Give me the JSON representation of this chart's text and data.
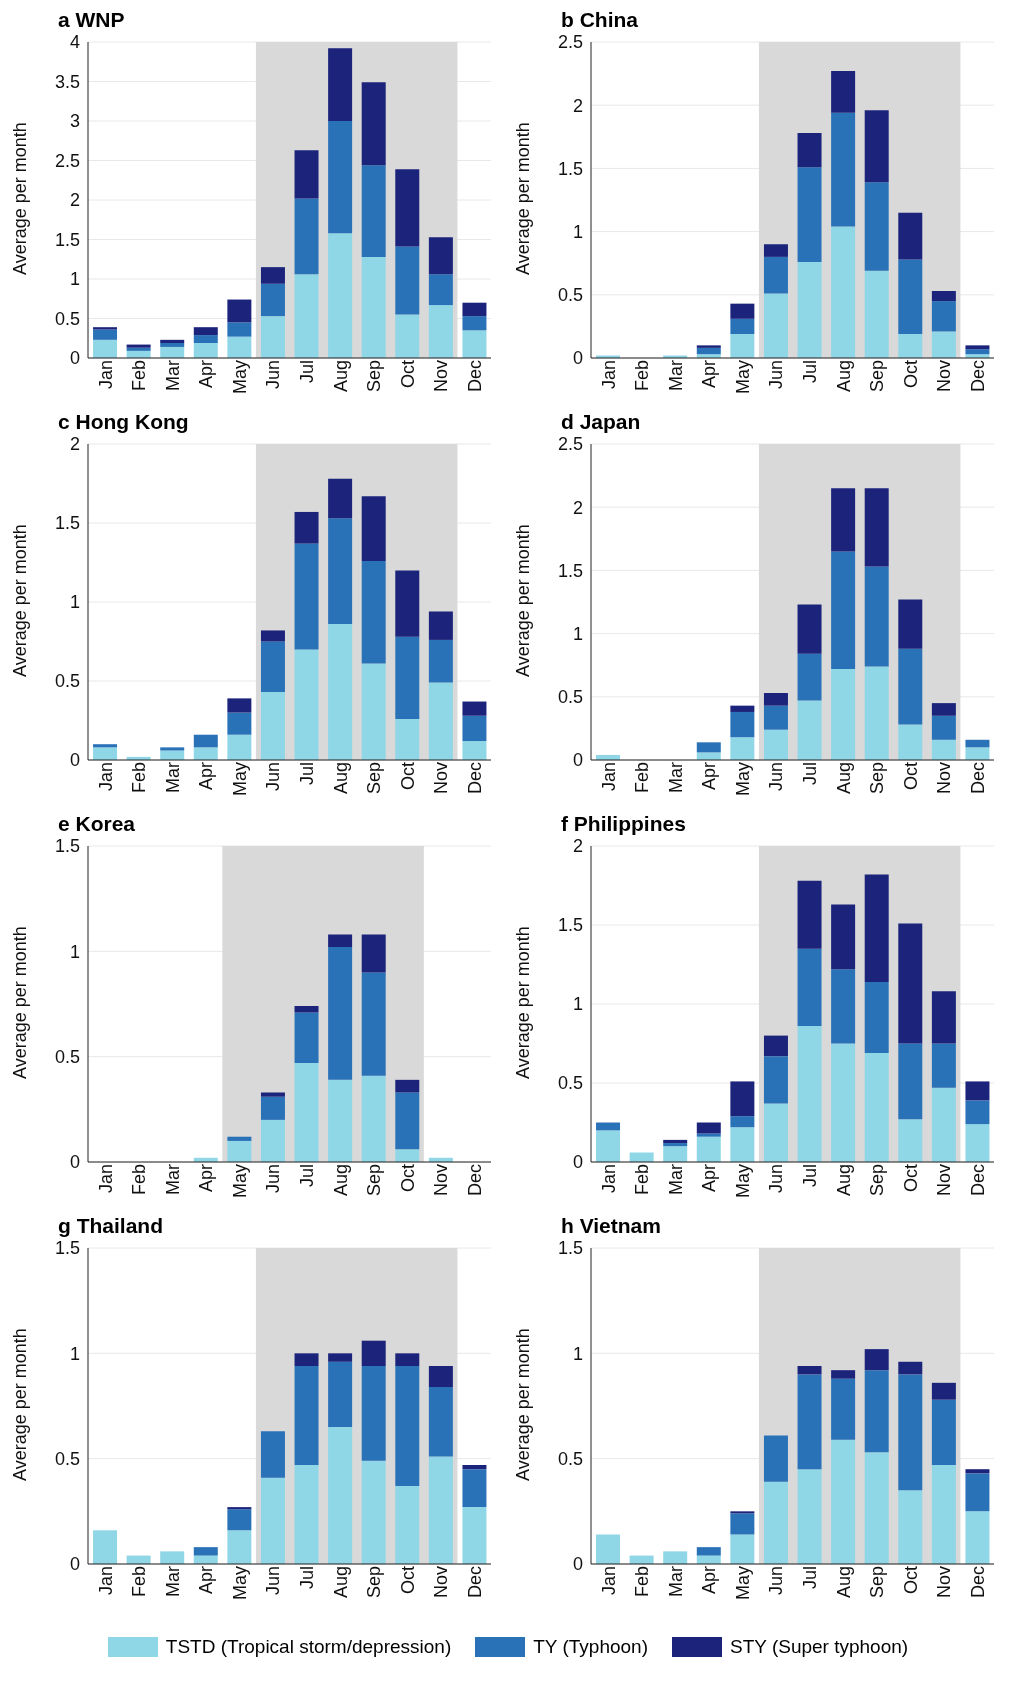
{
  "chart_data": [
    {
      "type": "bar",
      "title": "a WNP",
      "ylabel": "Average per month",
      "categories": [
        "Jan",
        "Feb",
        "Mar",
        "Apr",
        "May",
        "Jun",
        "Jul",
        "Aug",
        "Sep",
        "Oct",
        "Nov",
        "Dec"
      ],
      "stacked": true,
      "grid": "y",
      "legend": "bottom",
      "ylim": [
        0,
        4
      ],
      "yticks": [
        0,
        0.5,
        1,
        1.5,
        2,
        2.5,
        3,
        3.5,
        4
      ],
      "bands": [
        {
          "axis": "x",
          "from": "Jun",
          "to": "Nov",
          "color": "#d9d9d9"
        }
      ],
      "series": [
        {
          "name": "TSTD (Tropical storm/depression)",
          "color": "#8fd6e6",
          "values": [
            0.23,
            0.09,
            0.14,
            0.19,
            0.27,
            0.53,
            1.06,
            1.58,
            1.28,
            0.55,
            0.67,
            0.35
          ]
        },
        {
          "name": "TY (Typhoon)",
          "color": "#2a72b8",
          "values": [
            0.13,
            0.04,
            0.05,
            0.1,
            0.18,
            0.41,
            0.96,
            1.42,
            1.16,
            0.86,
            0.39,
            0.18
          ]
        },
        {
          "name": "STY (Super typhoon)",
          "color": "#1b237a",
          "values": [
            0.03,
            0.04,
            0.04,
            0.1,
            0.29,
            0.21,
            0.61,
            0.92,
            1.05,
            0.98,
            0.47,
            0.17
          ]
        }
      ]
    },
    {
      "type": "bar",
      "title": "b China",
      "ylabel": "Average per month",
      "categories": [
        "Jan",
        "Feb",
        "Mar",
        "Apr",
        "May",
        "Jun",
        "Jul",
        "Aug",
        "Sep",
        "Oct",
        "Nov",
        "Dec"
      ],
      "stacked": true,
      "grid": "y",
      "ylim": [
        0,
        2.5
      ],
      "yticks": [
        0,
        0.5,
        1,
        1.5,
        2,
        2.5
      ],
      "bands": [
        {
          "axis": "x",
          "from": "Jun",
          "to": "Nov",
          "color": "#d9d9d9"
        }
      ],
      "series": [
        {
          "color": "#8fd6e6",
          "values": [
            0.02,
            0,
            0.02,
            0.03,
            0.19,
            0.51,
            0.76,
            1.04,
            0.69,
            0.19,
            0.21,
            0.03
          ]
        },
        {
          "color": "#2a72b8",
          "values": [
            0,
            0,
            0,
            0.05,
            0.12,
            0.29,
            0.75,
            0.9,
            0.7,
            0.59,
            0.24,
            0.04
          ]
        },
        {
          "color": "#1b237a",
          "values": [
            0,
            0,
            0,
            0.02,
            0.12,
            0.1,
            0.27,
            0.33,
            0.57,
            0.37,
            0.08,
            0.03
          ]
        }
      ]
    },
    {
      "type": "bar",
      "title": "c Hong Kong",
      "ylabel": "Average per month",
      "categories": [
        "Jan",
        "Feb",
        "Mar",
        "Apr",
        "May",
        "Jun",
        "Jul",
        "Aug",
        "Sep",
        "Oct",
        "Nov",
        "Dec"
      ],
      "stacked": true,
      "grid": "y",
      "ylim": [
        0,
        2
      ],
      "yticks": [
        0,
        0.5,
        1,
        1.5,
        2
      ],
      "bands": [
        {
          "axis": "x",
          "from": "Jun",
          "to": "Nov",
          "color": "#d9d9d9"
        }
      ],
      "series": [
        {
          "color": "#8fd6e6",
          "values": [
            0.08,
            0.02,
            0.06,
            0.08,
            0.16,
            0.43,
            0.7,
            0.86,
            0.61,
            0.26,
            0.49,
            0.12
          ]
        },
        {
          "color": "#2a72b8",
          "values": [
            0.02,
            0,
            0.02,
            0.08,
            0.14,
            0.32,
            0.67,
            0.67,
            0.65,
            0.52,
            0.27,
            0.16
          ]
        },
        {
          "color": "#1b237a",
          "values": [
            0,
            0,
            0,
            0,
            0.09,
            0.07,
            0.2,
            0.25,
            0.41,
            0.42,
            0.18,
            0.09
          ]
        }
      ]
    },
    {
      "type": "bar",
      "title": "d Japan",
      "ylabel": "Average per month",
      "categories": [
        "Jan",
        "Feb",
        "Mar",
        "Apr",
        "May",
        "Jun",
        "Jul",
        "Aug",
        "Sep",
        "Oct",
        "Nov",
        "Dec"
      ],
      "stacked": true,
      "grid": "y",
      "ylim": [
        0,
        2.5
      ],
      "yticks": [
        0,
        0.5,
        1,
        1.5,
        2,
        2.5
      ],
      "bands": [
        {
          "axis": "x",
          "from": "Jun",
          "to": "Nov",
          "color": "#d9d9d9"
        }
      ],
      "series": [
        {
          "color": "#8fd6e6",
          "values": [
            0.04,
            0,
            0,
            0.06,
            0.18,
            0.24,
            0.47,
            0.72,
            0.74,
            0.28,
            0.16,
            0.1
          ]
        },
        {
          "color": "#2a72b8",
          "values": [
            0,
            0,
            0,
            0.08,
            0.2,
            0.19,
            0.37,
            0.93,
            0.79,
            0.6,
            0.19,
            0.06
          ]
        },
        {
          "color": "#1b237a",
          "values": [
            0,
            0,
            0,
            0,
            0.05,
            0.1,
            0.39,
            0.5,
            0.62,
            0.39,
            0.1,
            0
          ]
        }
      ]
    },
    {
      "type": "bar",
      "title": "e Korea",
      "ylabel": "Average per month",
      "categories": [
        "Jan",
        "Feb",
        "Mar",
        "Apr",
        "May",
        "Jun",
        "Jul",
        "Aug",
        "Sep",
        "Oct",
        "Nov",
        "Dec"
      ],
      "stacked": true,
      "grid": "y",
      "ylim": [
        0,
        1.5
      ],
      "yticks": [
        0,
        0.5,
        1,
        1.5
      ],
      "bands": [
        {
          "axis": "x",
          "from": "May",
          "to": "Oct",
          "color": "#d9d9d9"
        }
      ],
      "series": [
        {
          "color": "#8fd6e6",
          "values": [
            0,
            0,
            0,
            0.02,
            0.1,
            0.2,
            0.47,
            0.39,
            0.41,
            0.06,
            0.02,
            0
          ]
        },
        {
          "color": "#2a72b8",
          "values": [
            0,
            0,
            0,
            0,
            0.02,
            0.11,
            0.24,
            0.63,
            0.49,
            0.27,
            0,
            0
          ]
        },
        {
          "color": "#1b237a",
          "values": [
            0,
            0,
            0,
            0,
            0,
            0.02,
            0.03,
            0.06,
            0.18,
            0.06,
            0,
            0
          ]
        }
      ]
    },
    {
      "type": "bar",
      "title": "f Philippines",
      "ylabel": "Average per month",
      "categories": [
        "Jan",
        "Feb",
        "Mar",
        "Apr",
        "May",
        "Jun",
        "Jul",
        "Aug",
        "Sep",
        "Oct",
        "Nov",
        "Dec"
      ],
      "stacked": true,
      "grid": "y",
      "ylim": [
        0,
        2
      ],
      "yticks": [
        0,
        0.5,
        1,
        1.5,
        2
      ],
      "bands": [
        {
          "axis": "x",
          "from": "Jun",
          "to": "Nov",
          "color": "#d9d9d9"
        }
      ],
      "series": [
        {
          "color": "#8fd6e6",
          "values": [
            0.2,
            0.06,
            0.1,
            0.16,
            0.22,
            0.37,
            0.86,
            0.75,
            0.69,
            0.27,
            0.47,
            0.24
          ]
        },
        {
          "color": "#2a72b8",
          "values": [
            0.05,
            0,
            0.02,
            0.02,
            0.07,
            0.3,
            0.49,
            0.47,
            0.45,
            0.48,
            0.28,
            0.15
          ]
        },
        {
          "color": "#1b237a",
          "values": [
            0,
            0,
            0.02,
            0.07,
            0.22,
            0.13,
            0.43,
            0.41,
            0.68,
            0.76,
            0.33,
            0.12
          ]
        }
      ]
    },
    {
      "type": "bar",
      "title": "g Thailand",
      "ylabel": "Average per month",
      "categories": [
        "Jan",
        "Feb",
        "Mar",
        "Apr",
        "May",
        "Jun",
        "Jul",
        "Aug",
        "Sep",
        "Oct",
        "Nov",
        "Dec"
      ],
      "stacked": true,
      "grid": "y",
      "ylim": [
        0,
        1.5
      ],
      "yticks": [
        0,
        0.5,
        1,
        1.5
      ],
      "bands": [
        {
          "axis": "x",
          "from": "Jun",
          "to": "Nov",
          "color": "#d9d9d9"
        }
      ],
      "series": [
        {
          "color": "#8fd6e6",
          "values": [
            0.16,
            0.04,
            0.06,
            0.04,
            0.16,
            0.41,
            0.47,
            0.65,
            0.49,
            0.37,
            0.51,
            0.27
          ]
        },
        {
          "color": "#2a72b8",
          "values": [
            0,
            0,
            0,
            0.04,
            0.1,
            0.22,
            0.47,
            0.31,
            0.45,
            0.57,
            0.33,
            0.18
          ]
        },
        {
          "color": "#1b237a",
          "values": [
            0,
            0,
            0,
            0,
            0.01,
            0,
            0.06,
            0.04,
            0.12,
            0.06,
            0.1,
            0.02
          ]
        }
      ]
    },
    {
      "type": "bar",
      "title": "h Vietnam",
      "ylabel": "Average per month",
      "categories": [
        "Jan",
        "Feb",
        "Mar",
        "Apr",
        "May",
        "Jun",
        "Jul",
        "Aug",
        "Sep",
        "Oct",
        "Nov",
        "Dec"
      ],
      "stacked": true,
      "grid": "y",
      "ylim": [
        0,
        1.5
      ],
      "yticks": [
        0,
        0.5,
        1,
        1.5
      ],
      "bands": [
        {
          "axis": "x",
          "from": "Jun",
          "to": "Nov",
          "color": "#d9d9d9"
        }
      ],
      "series": [
        {
          "color": "#8fd6e6",
          "values": [
            0.14,
            0.04,
            0.06,
            0.04,
            0.14,
            0.39,
            0.45,
            0.59,
            0.53,
            0.35,
            0.47,
            0.25
          ]
        },
        {
          "color": "#2a72b8",
          "values": [
            0,
            0,
            0,
            0.04,
            0.1,
            0.22,
            0.45,
            0.29,
            0.39,
            0.55,
            0.31,
            0.18
          ]
        },
        {
          "color": "#1b237a",
          "values": [
            0,
            0,
            0,
            0,
            0.01,
            0,
            0.04,
            0.04,
            0.1,
            0.06,
            0.08,
            0.02
          ]
        }
      ]
    }
  ]
}
